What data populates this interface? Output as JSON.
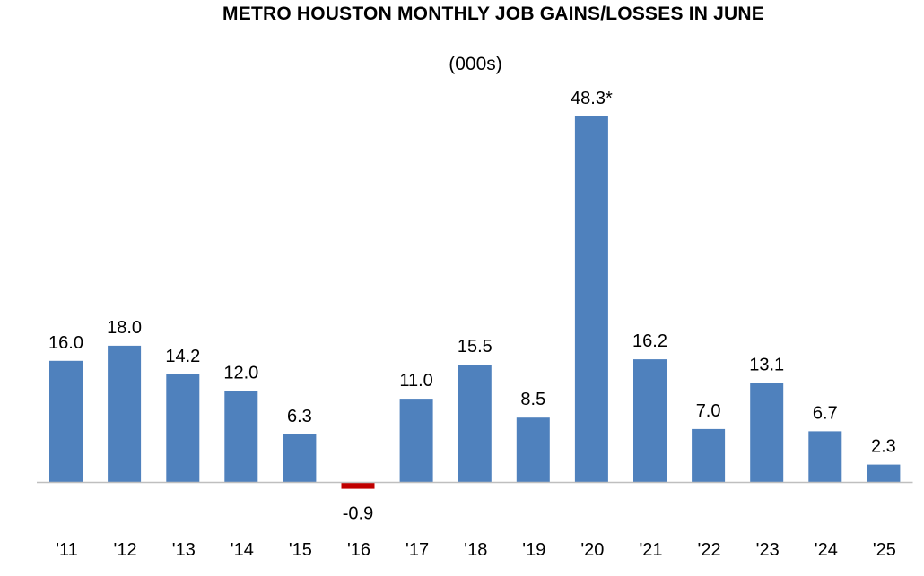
{
  "chart_data": {
    "type": "bar",
    "title": "METRO HOUSTON MONTHLY JOB GAINS/LOSSES IN JUNE",
    "subtitle": "(000s)",
    "xlabel": "",
    "ylabel": "",
    "categories": [
      "'11",
      "'12",
      "'13",
      "'14",
      "'15",
      "'16",
      "'17",
      "'18",
      "'19",
      "'20",
      "'21",
      "'22",
      "'23",
      "'24",
      "'25"
    ],
    "values": [
      16.0,
      18.0,
      14.2,
      12.0,
      6.3,
      -0.9,
      11.0,
      15.5,
      8.5,
      48.3,
      16.2,
      7.0,
      13.1,
      6.7,
      2.3
    ],
    "data_labels": [
      "16.0",
      "18.0",
      "14.2",
      "12.0",
      "6.3",
      "-0.9",
      "11.0",
      "15.5",
      "8.5",
      "48.3*",
      "16.2",
      "7.0",
      "13.1",
      "6.7",
      "2.3"
    ],
    "grid": false,
    "legend": "none",
    "colors": {
      "positive": "#4f81bd",
      "negative": "#c00000",
      "axis": "#bfbfbf"
    }
  }
}
